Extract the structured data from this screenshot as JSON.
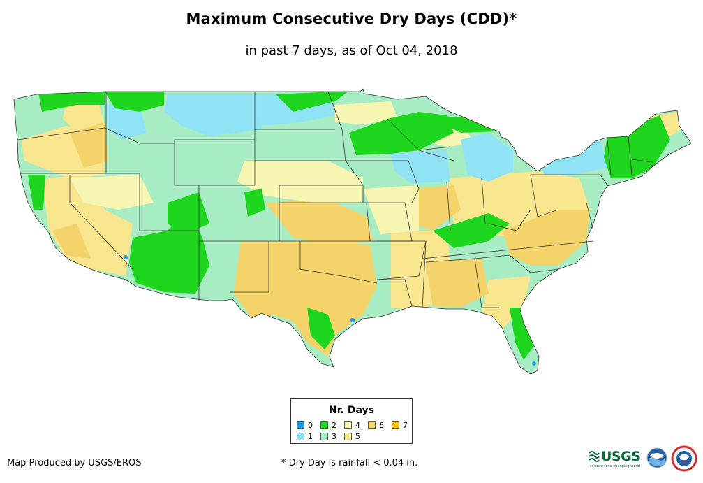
{
  "title": "Maximum Consecutive Dry Days (CDD)*",
  "subtitle": "in past 7 days, as of Oct 04, 2018",
  "legend": {
    "title": "Nr. Days",
    "items": [
      {
        "label": "0",
        "color": "#1f9be8"
      },
      {
        "label": "1",
        "color": "#8fe3f5"
      },
      {
        "label": "2",
        "color": "#1fd61f"
      },
      {
        "label": "3",
        "color": "#a8ecc4"
      },
      {
        "label": "4",
        "color": "#f6f5b2"
      },
      {
        "label": "5",
        "color": "#f8e68e"
      },
      {
        "label": "6",
        "color": "#f4d36b"
      },
      {
        "label": "7",
        "color": "#f6c20a"
      }
    ]
  },
  "credit": "Map Produced by USGS/EROS",
  "footnote": "* Dry Day is rainfall < 0.04 in.",
  "logos": {
    "usgs": "USGS",
    "usgs_tagline": "science for a changing world",
    "noaa": "noaa",
    "nws": "NATIONAL WEATHER SERVICE"
  }
}
